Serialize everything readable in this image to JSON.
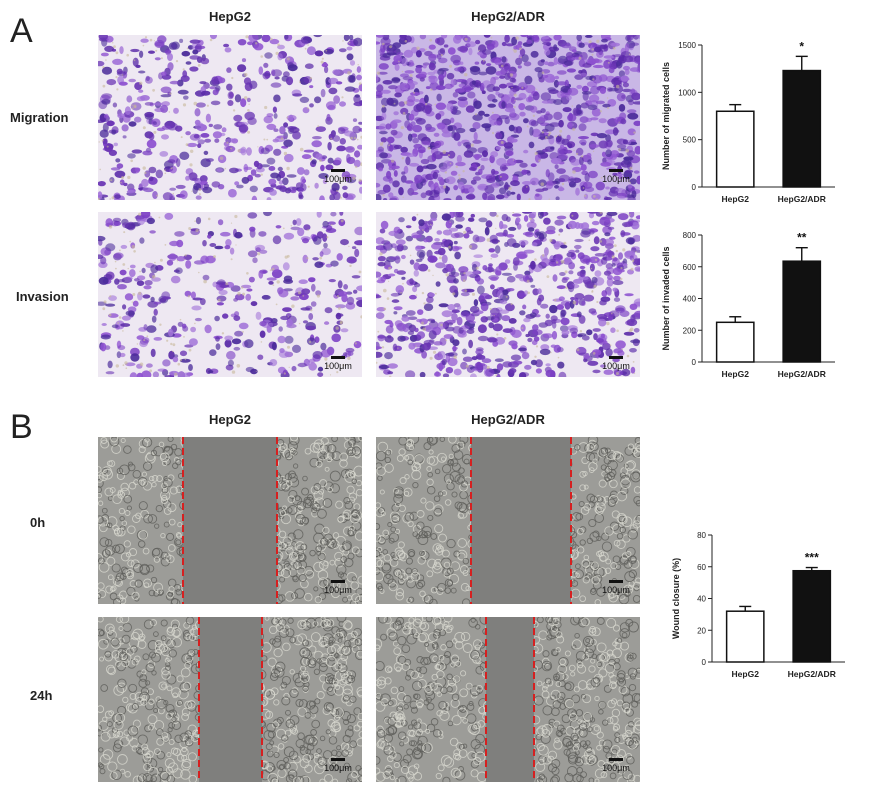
{
  "panels": {
    "a": {
      "letter": "A",
      "col_headers": [
        "HepG2",
        "HepG2/ADR"
      ],
      "row_headers": [
        "Migration",
        "Invasion"
      ],
      "scale_label": "100μm",
      "stain_color": "#7a3fbf"
    },
    "b": {
      "letter": "B",
      "col_headers": [
        "HepG2",
        "HepG2/ADR"
      ],
      "row_headers": [
        "0h",
        "24h"
      ],
      "scale_label": "100μm",
      "wound_line_color": "#d62020"
    }
  },
  "chart_data": [
    {
      "type": "bar",
      "categories": [
        "HepG2",
        "HepG2/ADR"
      ],
      "values": [
        800,
        1230
      ],
      "errors": [
        70,
        150
      ],
      "fills": [
        "#ffffff",
        "#111111"
      ],
      "ylabel": "Number of migrated cells",
      "ylim": [
        0,
        1500
      ],
      "yticks": [
        "0",
        "500",
        "1000",
        "1500"
      ],
      "significance": [
        "",
        "*"
      ],
      "grid": false
    },
    {
      "type": "bar",
      "categories": [
        "HepG2",
        "HepG2/ADR"
      ],
      "values": [
        250,
        635
      ],
      "errors": [
        35,
        85
      ],
      "fills": [
        "#ffffff",
        "#111111"
      ],
      "ylabel": "Number of invaded cells",
      "ylim": [
        0,
        800
      ],
      "yticks": [
        "0",
        "200",
        "400",
        "600",
        "800"
      ],
      "significance": [
        "",
        "**"
      ],
      "grid": false
    },
    {
      "type": "bar",
      "categories": [
        "HepG2",
        "HepG2/ADR"
      ],
      "values": [
        32,
        57.5
      ],
      "errors": [
        3,
        2
      ],
      "fills": [
        "#ffffff",
        "#111111"
      ],
      "ylabel": "Wound closure (%)",
      "ylim": [
        0,
        80
      ],
      "yticks": [
        "0",
        "20",
        "40",
        "60",
        "80"
      ],
      "significance": [
        "",
        "***"
      ],
      "grid": false
    }
  ]
}
